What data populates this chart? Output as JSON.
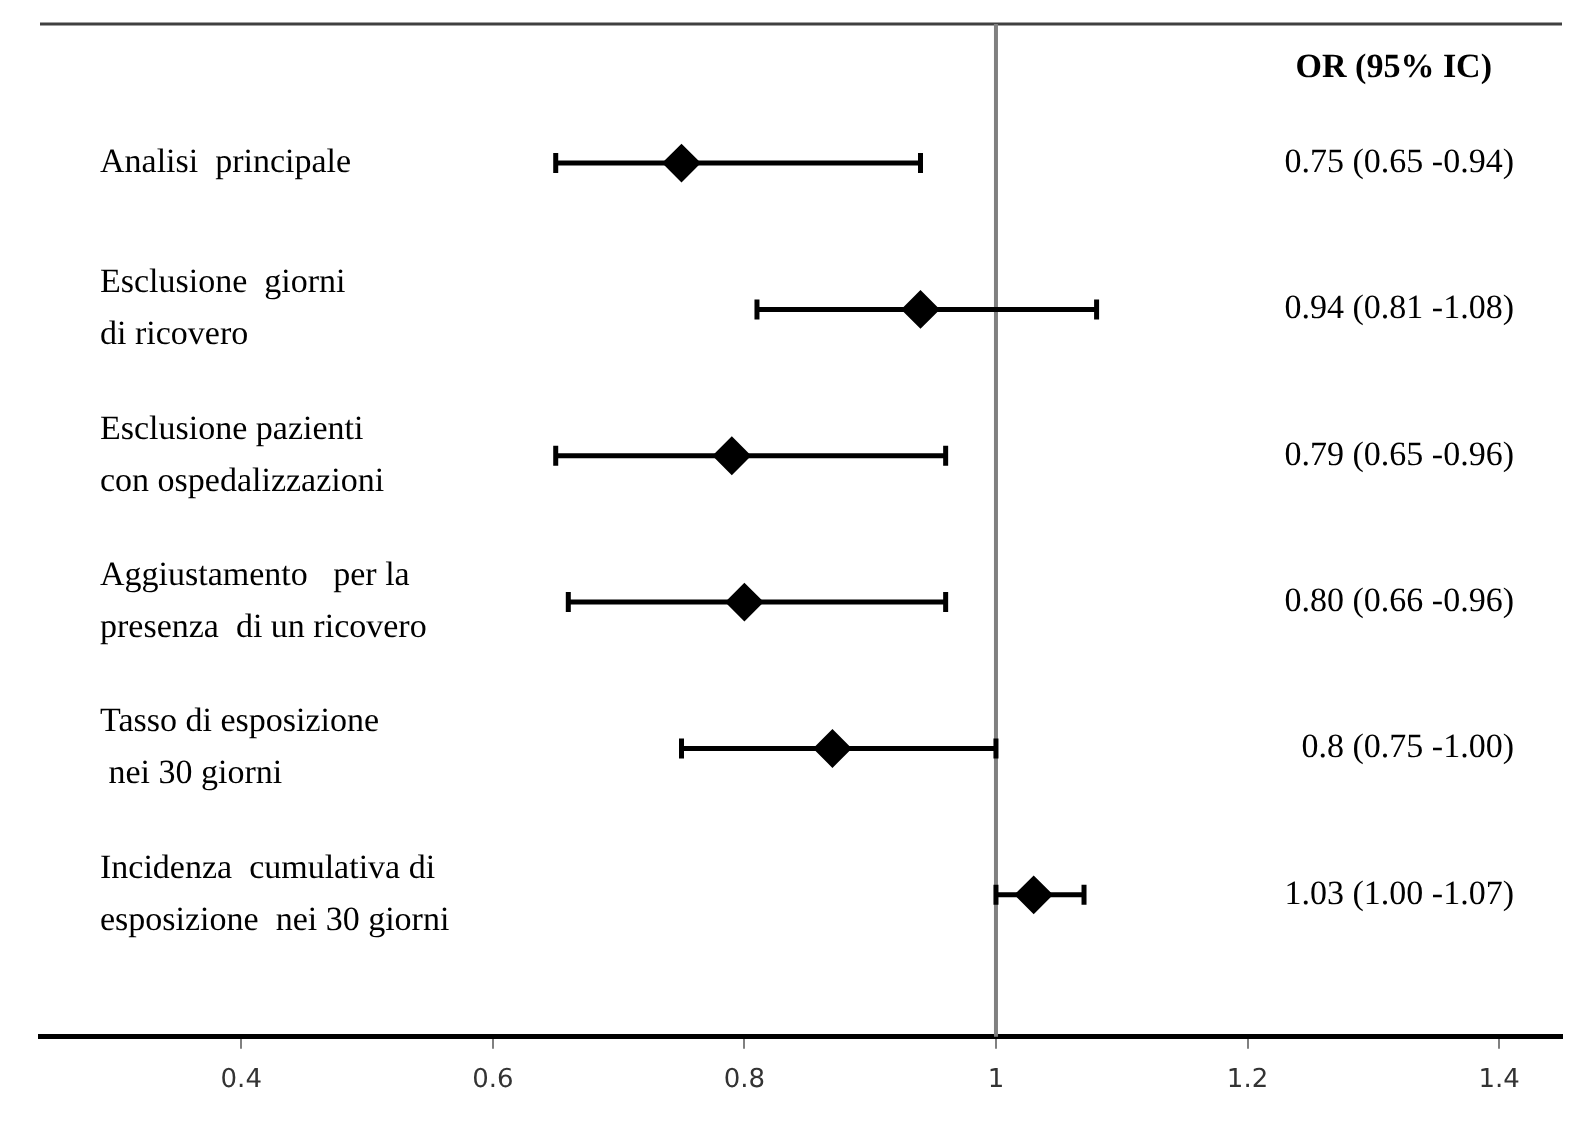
{
  "chart_data": {
    "type": "scatter",
    "orientation": "horizontal",
    "marker": "diamond",
    "color": "#000000",
    "tick_labels": "x",
    "categories": [
      "Analisi  principale",
      "Esclusione  giorni\ndi ricovero",
      "Esclusione pazienti\ncon ospedalizzazioni",
      "Aggiustamento   per la\npresenza  di un ricovero",
      "Tasso di esposizione\n nei 30 giorni",
      "Incidenza  cumulativa di\nesposizione  nei 30 giorni"
    ],
    "values": [
      0.75,
      0.94,
      0.79,
      0.8,
      0.87,
      1.03
    ],
    "errors": [
      [
        0.65,
        0.94
      ],
      [
        0.81,
        1.08
      ],
      [
        0.65,
        0.96
      ],
      [
        0.66,
        0.96
      ],
      [
        0.75,
        1.0
      ],
      [
        1.0,
        1.07
      ]
    ],
    "xlim": [
      0.24,
      1.45
    ],
    "xticks": [
      0.4,
      0.6,
      0.8,
      1,
      1.2,
      1.4
    ],
    "ref_lines": [
      {
        "axis": "x",
        "value": 1,
        "color": "#808080"
      }
    ],
    "annotations": [
      "OR (95% IC)",
      "0.75 (0.65 -0.94)",
      "0.94 (0.81 -1.08)",
      "0.79 (0.65 -0.96)",
      "0.80 (0.66 -0.96)",
      "0.8 (0.75 -1.00)",
      "1.03 (1.00 -1.07)"
    ]
  }
}
